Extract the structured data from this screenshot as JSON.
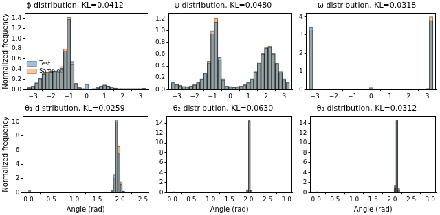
{
  "chart_data": [
    {
      "type": "histogram",
      "title": "ϕ distribution, KL=0.0412",
      "ylabel": "Normalized frequency",
      "bins": [
        -3.3,
        -3.1,
        -2.9,
        -2.7,
        -2.5,
        -2.3,
        -2.1,
        -1.9,
        -1.7,
        -1.5,
        -1.3,
        -1.1,
        -0.9,
        -0.7,
        -0.5,
        -0.3,
        -0.1,
        0.1,
        0.3,
        0.5,
        0.7,
        0.9,
        1.1,
        1.3,
        1.5,
        1.7,
        1.9,
        2.1,
        2.3,
        2.5,
        2.7,
        2.9,
        3.1,
        3.3
      ],
      "series": [
        {
          "name": "Test",
          "color": "#1f77b4",
          "values": [
            0.04,
            0.07,
            0.13,
            0.22,
            0.3,
            0.33,
            0.34,
            0.35,
            0.36,
            0.42,
            0.75,
            1.38,
            0.55,
            0.12,
            0.04,
            0.02,
            0.1,
            0.01,
            0.02,
            0.04,
            0.07,
            0.09,
            0.07,
            0.05,
            0.03,
            0.02,
            0.02,
            0.02,
            0.02,
            0.02,
            0.02,
            0.02,
            0.03
          ]
        },
        {
          "name": "Sampled",
          "color": "#ff7f0e",
          "values": [
            0.03,
            0.06,
            0.12,
            0.21,
            0.31,
            0.34,
            0.35,
            0.36,
            0.37,
            0.45,
            0.8,
            1.42,
            0.5,
            0.1,
            0.03,
            0.02,
            0.01,
            0.01,
            0.02,
            0.03,
            0.06,
            0.08,
            0.07,
            0.05,
            0.03,
            0.02,
            0.02,
            0.02,
            0.02,
            0.02,
            0.02,
            0.02,
            0.02
          ]
        }
      ],
      "xlim": [
        -3.45,
        3.45
      ],
      "xticks": [
        {
          "value": -3,
          "label": "−3"
        },
        {
          "value": -2,
          "label": "−2"
        },
        {
          "value": -1,
          "label": "−1"
        },
        0,
        1,
        2,
        3
      ],
      "ylim": [
        0,
        1.5
      ],
      "yticks": [
        {
          "value": 0,
          "label": "0.0"
        },
        {
          "value": 0.2,
          "label": "0.2"
        },
        {
          "value": 0.4,
          "label": "0.4"
        },
        {
          "value": 0.6,
          "label": "0.6"
        },
        {
          "value": 0.8,
          "label": "0.8"
        },
        {
          "value": 1.0,
          "label": "1.0"
        },
        {
          "value": 1.2,
          "label": "1.2"
        },
        {
          "value": 1.4,
          "label": "1.4"
        }
      ],
      "grid": false,
      "legend": "upper right"
    },
    {
      "type": "histogram",
      "title": "ψ distribution, KL=0.0480",
      "bins": [
        -3.3,
        -3.1,
        -2.9,
        -2.7,
        -2.5,
        -2.3,
        -2.1,
        -1.9,
        -1.7,
        -1.5,
        -1.3,
        -1.1,
        -0.9,
        -0.7,
        -0.5,
        -0.3,
        -0.1,
        0.1,
        0.3,
        0.5,
        0.7,
        0.9,
        1.1,
        1.3,
        1.5,
        1.7,
        1.9,
        2.1,
        2.3,
        2.5,
        2.7,
        2.9,
        3.1,
        3.3
      ],
      "series": [
        {
          "name": "Test",
          "color": "#1f77b4",
          "values": [
            0.12,
            0.09,
            0.07,
            0.05,
            0.05,
            0.06,
            0.08,
            0.12,
            0.18,
            0.28,
            0.45,
            0.95,
            1.15,
            0.55,
            0.18,
            0.06,
            0.05,
            0.04,
            0.05,
            0.06,
            0.08,
            0.12,
            0.18,
            0.3,
            0.45,
            0.6,
            0.7,
            0.72,
            0.6,
            0.45,
            0.3,
            0.18,
            0.12
          ]
        },
        {
          "name": "Sampled",
          "color": "#ff7f0e",
          "values": [
            0.1,
            0.08,
            0.06,
            0.05,
            0.04,
            0.05,
            0.07,
            0.11,
            0.17,
            0.27,
            0.48,
            1.0,
            1.22,
            0.5,
            0.15,
            0.05,
            0.04,
            0.04,
            0.04,
            0.05,
            0.07,
            0.11,
            0.17,
            0.29,
            0.46,
            0.62,
            0.72,
            0.74,
            0.62,
            0.44,
            0.28,
            0.16,
            0.1
          ]
        }
      ],
      "xlim": [
        -3.45,
        3.45
      ],
      "xticks": [
        {
          "value": -3,
          "label": "−3"
        },
        {
          "value": -2,
          "label": "−2"
        },
        {
          "value": -1,
          "label": "−1"
        },
        0,
        1,
        2,
        3
      ],
      "ylim": [
        0,
        1.3
      ],
      "yticks": [
        {
          "value": 0,
          "label": "0.0"
        },
        {
          "value": 0.2,
          "label": "0.2"
        },
        {
          "value": 0.4,
          "label": "0.4"
        },
        {
          "value": 0.6,
          "label": "0.6"
        },
        {
          "value": 0.8,
          "label": "0.8"
        },
        {
          "value": 1.0,
          "label": "1.0"
        },
        {
          "value": 1.2,
          "label": "1.2"
        }
      ],
      "grid": false
    },
    {
      "type": "histogram",
      "title": "ω distribution, KL=0.0318",
      "bins": [
        -3.3,
        -3.1,
        -2.9,
        -2.7,
        -2.5,
        -2.3,
        -2.1,
        -1.9,
        -1.7,
        -1.5,
        -1.3,
        -1.1,
        -0.9,
        -0.7,
        -0.5,
        -0.3,
        -0.1,
        0.1,
        0.3,
        0.5,
        0.7,
        0.9,
        1.1,
        1.3,
        1.5,
        1.7,
        1.9,
        2.1,
        2.3,
        2.5,
        2.7,
        2.9,
        3.1,
        3.3
      ],
      "series": [
        {
          "name": "Test",
          "color": "#1f77b4",
          "values": [
            3.4,
            0.03,
            0,
            0,
            0,
            0,
            0,
            0,
            0,
            0,
            0,
            0,
            0,
            0,
            0,
            0,
            0.1,
            0,
            0,
            0,
            0,
            0,
            0,
            0,
            0,
            0,
            0,
            0,
            0,
            0,
            0,
            0.03,
            3.8
          ]
        },
        {
          "name": "Sampled",
          "color": "#ff7f0e",
          "values": [
            3.3,
            0.04,
            0,
            0,
            0,
            0,
            0,
            0,
            0,
            0,
            0,
            0,
            0,
            0,
            0,
            0,
            0,
            0,
            0,
            0,
            0,
            0,
            0,
            0,
            0,
            0,
            0,
            0,
            0,
            0,
            0,
            0.06,
            4.0
          ]
        }
      ],
      "xlim": [
        -3.45,
        3.45
      ],
      "xticks": [
        {
          "value": -3,
          "label": "−3"
        },
        {
          "value": -2,
          "label": "−2"
        },
        {
          "value": -1,
          "label": "−1"
        },
        0,
        1,
        2,
        3
      ],
      "ylim": [
        0,
        4.2
      ],
      "yticks": [
        0,
        1,
        2,
        3,
        4
      ],
      "grid": false
    },
    {
      "type": "histogram",
      "title": "θ₁ distribution, KL=0.0259",
      "xlabel": "Angle (rad)",
      "ylabel": "Normalized frequency",
      "bins": [
        0,
        0.05,
        0.1,
        0.15,
        0.2,
        0.25,
        0.3,
        0.35,
        0.4,
        0.45,
        0.5,
        0.55,
        0.6,
        0.65,
        0.7,
        0.75,
        0.8,
        0.85,
        0.9,
        0.95,
        1.0,
        1.05,
        1.1,
        1.15,
        1.2,
        1.25,
        1.3,
        1.35,
        1.4,
        1.45,
        1.5,
        1.55,
        1.6,
        1.65,
        1.7,
        1.75,
        1.8,
        1.85,
        1.9,
        1.95,
        2.0,
        2.05,
        2.1,
        2.15,
        2.2,
        2.25,
        2.3,
        2.35,
        2.4,
        2.45,
        2.5
      ],
      "series": [
        {
          "name": "Test",
          "color": "#1f77b4",
          "values": [
            0.3,
            0,
            0,
            0,
            0,
            0,
            0,
            0,
            0,
            0,
            0,
            0,
            0,
            0,
            0,
            0,
            0,
            0,
            0,
            0,
            0,
            0,
            0,
            0,
            0,
            0,
            0,
            0,
            0,
            0,
            0,
            0,
            0,
            0,
            0,
            0,
            0.3,
            2.5,
            10.3,
            5.5,
            1.2,
            0.2,
            0,
            0,
            0,
            0,
            0,
            0,
            0,
            0
          ]
        },
        {
          "name": "Sampled",
          "color": "#ff7f0e",
          "values": [
            0,
            0,
            0,
            0,
            0,
            0,
            0,
            0,
            0,
            0,
            0,
            0,
            0,
            0,
            0,
            0,
            0,
            0,
            0,
            0,
            0,
            0,
            0,
            0,
            0,
            0,
            0,
            0,
            0,
            0,
            0,
            0,
            0,
            0,
            0,
            0,
            0.2,
            2.0,
            10.0,
            6.5,
            1.5,
            0.2,
            0,
            0,
            0,
            0,
            0,
            0,
            0,
            0
          ]
        }
      ],
      "xlim": [
        -0.12,
        2.62
      ],
      "xticks": [
        {
          "value": 0,
          "label": "0.0"
        },
        {
          "value": 0.5,
          "label": "0.5"
        },
        {
          "value": 1.0,
          "label": "1.0"
        },
        {
          "value": 1.5,
          "label": "1.5"
        },
        {
          "value": 2.0,
          "label": "2.0"
        },
        {
          "value": 2.5,
          "label": "2.5"
        }
      ],
      "ylim": [
        0,
        10.8
      ],
      "yticks": [
        0,
        2,
        4,
        6,
        8,
        10
      ],
      "grid": false
    },
    {
      "type": "histogram",
      "title": "θ₂ distribution, KL=0.0630",
      "xlabel": "Angle (rad)",
      "bins": [
        0,
        0.05,
        0.1,
        0.15,
        0.2,
        0.25,
        0.3,
        0.35,
        0.4,
        0.45,
        0.5,
        0.55,
        0.6,
        0.65,
        0.7,
        0.75,
        0.8,
        0.85,
        0.9,
        0.95,
        1.0,
        1.05,
        1.1,
        1.15,
        1.2,
        1.25,
        1.3,
        1.35,
        1.4,
        1.45,
        1.5,
        1.55,
        1.6,
        1.65,
        1.7,
        1.75,
        1.8,
        1.85,
        1.9,
        1.95,
        2.0,
        2.05,
        2.1,
        2.15,
        2.2,
        2.25,
        2.3,
        2.35,
        2.4,
        2.45,
        2.5,
        2.55,
        2.6,
        2.65,
        2.7,
        2.75,
        2.8,
        2.85,
        2.9,
        2.95,
        3.0
      ],
      "series": [
        {
          "name": "Test",
          "color": "#1f77b4",
          "values": [
            0.2,
            0,
            0,
            0,
            0,
            0,
            0,
            0,
            0,
            0,
            0,
            0,
            0,
            0,
            0,
            0,
            0,
            0,
            0,
            0,
            0,
            0,
            0,
            0,
            0,
            0,
            0,
            0,
            0,
            0,
            0,
            0,
            0,
            0,
            0,
            0,
            0,
            0,
            0,
            0.5,
            14.6,
            0.4,
            0,
            0,
            0,
            0,
            0,
            0,
            0,
            0,
            0,
            0,
            0,
            0,
            0,
            0,
            0,
            0,
            0,
            0
          ]
        },
        {
          "name": "Sampled",
          "color": "#ff7f0e",
          "values": [
            0,
            0,
            0,
            0,
            0,
            0,
            0,
            0,
            0,
            0,
            0,
            0,
            0,
            0,
            0,
            0,
            0,
            0,
            0,
            0,
            0,
            0,
            0,
            0,
            0,
            0,
            0,
            0,
            0,
            0,
            0,
            0,
            0,
            0,
            0,
            0,
            0,
            0,
            0,
            0.6,
            14.4,
            0.5,
            0,
            0,
            0,
            0,
            0,
            0,
            0,
            0,
            0,
            0,
            0,
            0,
            0,
            0,
            0,
            0,
            0,
            0
          ]
        }
      ],
      "xlim": [
        -0.15,
        3.15
      ],
      "xticks": [
        {
          "value": 0,
          "label": "0.0"
        },
        {
          "value": 0.5,
          "label": "0.5"
        },
        {
          "value": 1.0,
          "label": "1.0"
        },
        {
          "value": 1.5,
          "label": "1.5"
        },
        {
          "value": 2.0,
          "label": "2.0"
        },
        {
          "value": 2.5,
          "label": "2.5"
        },
        {
          "value": 3.0,
          "label": "3.0"
        }
      ],
      "ylim": [
        0,
        15.4
      ],
      "yticks": [
        0,
        2,
        4,
        6,
        8,
        10,
        12,
        14
      ],
      "grid": false
    },
    {
      "type": "histogram",
      "title": "θ₃ distribution, KL=0.0312",
      "xlabel": "Angle (rad)",
      "bins": [
        0,
        0.05,
        0.1,
        0.15,
        0.2,
        0.25,
        0.3,
        0.35,
        0.4,
        0.45,
        0.5,
        0.55,
        0.6,
        0.65,
        0.7,
        0.75,
        0.8,
        0.85,
        0.9,
        0.95,
        1.0,
        1.05,
        1.1,
        1.15,
        1.2,
        1.25,
        1.3,
        1.35,
        1.4,
        1.45,
        1.5,
        1.55,
        1.6,
        1.65,
        1.7,
        1.75,
        1.8,
        1.85,
        1.9,
        1.95,
        2.0,
        2.05,
        2.1,
        2.15,
        2.2,
        2.25,
        2.3,
        2.35,
        2.4,
        2.45,
        2.5,
        2.55,
        2.6,
        2.65,
        2.7,
        2.75,
        2.8,
        2.85,
        2.9,
        2.95,
        3.0
      ],
      "series": [
        {
          "name": "Test",
          "color": "#1f77b4",
          "values": [
            0.2,
            0,
            0,
            0,
            0,
            0,
            0,
            0,
            0,
            0,
            0,
            0,
            0,
            0,
            0,
            0,
            0,
            0,
            0,
            0,
            0,
            0,
            0,
            0,
            0,
            0,
            0,
            0,
            0,
            0,
            0,
            0,
            0,
            0,
            0,
            0,
            0,
            0,
            0,
            0,
            0,
            1.0,
            14.7,
            0.6,
            0,
            0,
            0,
            0,
            0,
            0,
            0,
            0,
            0,
            0,
            0,
            0,
            0,
            0,
            0,
            0
          ]
        },
        {
          "name": "Sampled",
          "color": "#ff7f0e",
          "values": [
            0,
            0,
            0,
            0,
            0,
            0,
            0,
            0,
            0,
            0,
            0,
            0,
            0,
            0,
            0,
            0,
            0,
            0,
            0,
            0,
            0,
            0,
            0,
            0,
            0,
            0,
            0,
            0,
            0,
            0,
            0,
            0,
            0,
            0,
            0,
            0,
            0,
            0,
            0,
            0,
            0,
            1.5,
            14.5,
            0.8,
            0,
            0,
            0,
            0,
            0,
            0,
            0,
            0,
            0,
            0,
            0,
            0,
            0,
            0,
            0,
            0
          ]
        }
      ],
      "xlim": [
        -0.15,
        3.15
      ],
      "xticks": [
        {
          "value": 0,
          "label": "0.0"
        },
        {
          "value": 0.5,
          "label": "0.5"
        },
        {
          "value": 1.0,
          "label": "1.0"
        },
        {
          "value": 1.5,
          "label": "1.5"
        },
        {
          "value": 2.0,
          "label": "2.0"
        },
        {
          "value": 2.5,
          "label": "2.5"
        },
        {
          "value": 3.0,
          "label": "3.0"
        }
      ],
      "ylim": [
        0,
        15.4
      ],
      "yticks": [
        0,
        2,
        4,
        6,
        8,
        10,
        12,
        14
      ],
      "grid": false
    }
  ]
}
